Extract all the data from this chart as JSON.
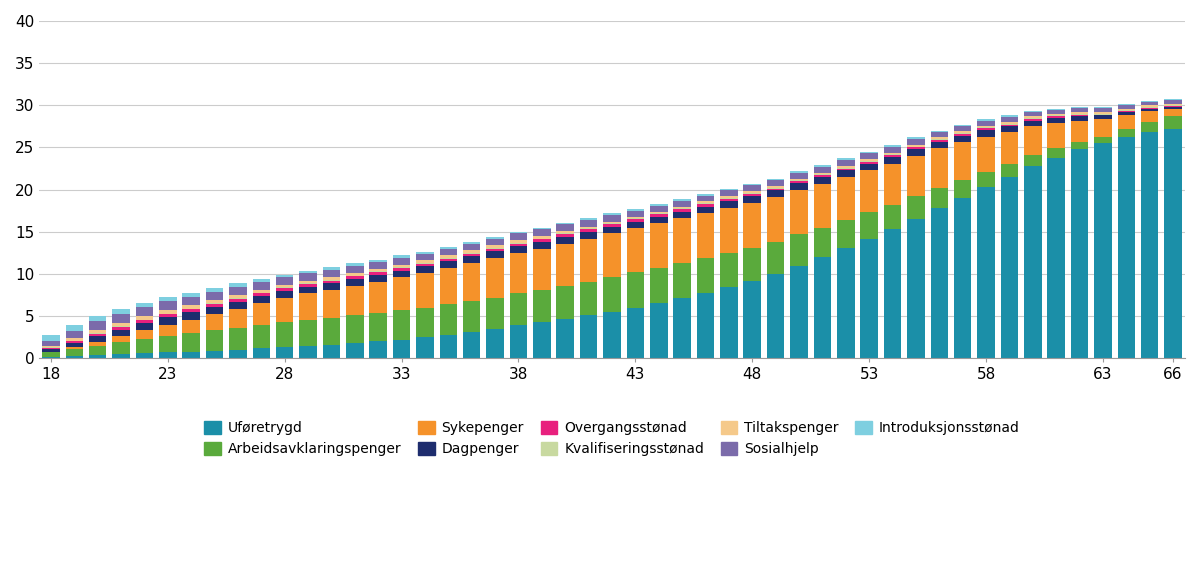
{
  "ages": [
    18,
    19,
    20,
    21,
    22,
    23,
    24,
    25,
    26,
    27,
    28,
    29,
    30,
    31,
    32,
    33,
    34,
    35,
    36,
    37,
    38,
    39,
    40,
    41,
    42,
    43,
    44,
    45,
    46,
    47,
    48,
    49,
    50,
    51,
    52,
    53,
    54,
    55,
    56,
    57,
    58,
    59,
    60,
    61,
    62,
    63,
    64,
    65,
    66
  ],
  "series": {
    "Uføretrygd": [
      0.2,
      0.3,
      0.4,
      0.5,
      0.6,
      0.7,
      0.8,
      0.9,
      1.0,
      1.2,
      1.3,
      1.5,
      1.6,
      1.8,
      2.0,
      2.2,
      2.5,
      2.8,
      3.1,
      3.5,
      3.9,
      4.3,
      4.7,
      5.1,
      5.5,
      6.0,
      6.5,
      7.1,
      7.8,
      8.5,
      9.2,
      10.0,
      11.0,
      12.0,
      13.1,
      14.2,
      15.3,
      16.5,
      17.8,
      19.0,
      20.3,
      21.5,
      22.8,
      23.8,
      24.8,
      25.5,
      26.2,
      26.8,
      27.2
    ],
    "Arbeidsavklaringspenger": [
      0.5,
      0.8,
      1.1,
      1.4,
      1.7,
      2.0,
      2.2,
      2.4,
      2.6,
      2.8,
      3.0,
      3.1,
      3.2,
      3.3,
      3.4,
      3.5,
      3.5,
      3.6,
      3.7,
      3.7,
      3.8,
      3.8,
      3.9,
      4.0,
      4.1,
      4.2,
      4.2,
      4.2,
      4.1,
      4.0,
      3.9,
      3.8,
      3.7,
      3.5,
      3.3,
      3.1,
      2.9,
      2.7,
      2.4,
      2.1,
      1.8,
      1.5,
      1.3,
      1.1,
      0.9,
      0.8,
      1.0,
      1.2,
      1.5
    ],
    "Sykepenger": [
      0.1,
      0.2,
      0.4,
      0.7,
      1.0,
      1.3,
      1.6,
      2.0,
      2.3,
      2.6,
      2.9,
      3.1,
      3.3,
      3.5,
      3.7,
      3.9,
      4.1,
      4.3,
      4.5,
      4.7,
      4.8,
      4.9,
      5.0,
      5.1,
      5.2,
      5.2,
      5.3,
      5.3,
      5.3,
      5.3,
      5.3,
      5.3,
      5.3,
      5.2,
      5.1,
      5.0,
      4.9,
      4.8,
      4.7,
      4.5,
      4.2,
      3.8,
      3.4,
      3.0,
      2.5,
      2.1,
      1.7,
      1.3,
      0.9
    ],
    "Dagpenger": [
      0.3,
      0.5,
      0.7,
      0.8,
      0.9,
      0.9,
      0.9,
      0.8,
      0.8,
      0.8,
      0.8,
      0.8,
      0.8,
      0.8,
      0.8,
      0.8,
      0.8,
      0.8,
      0.8,
      0.8,
      0.8,
      0.8,
      0.8,
      0.8,
      0.8,
      0.8,
      0.8,
      0.8,
      0.8,
      0.8,
      0.8,
      0.8,
      0.8,
      0.8,
      0.8,
      0.8,
      0.8,
      0.8,
      0.8,
      0.8,
      0.8,
      0.7,
      0.7,
      0.6,
      0.5,
      0.4,
      0.3,
      0.3,
      0.2
    ],
    "Overgangsstønad": [
      0.1,
      0.2,
      0.3,
      0.3,
      0.3,
      0.3,
      0.3,
      0.3,
      0.3,
      0.3,
      0.3,
      0.3,
      0.3,
      0.3,
      0.3,
      0.3,
      0.3,
      0.3,
      0.3,
      0.3,
      0.3,
      0.3,
      0.3,
      0.3,
      0.3,
      0.3,
      0.3,
      0.3,
      0.3,
      0.3,
      0.3,
      0.2,
      0.2,
      0.2,
      0.2,
      0.2,
      0.2,
      0.2,
      0.2,
      0.2,
      0.2,
      0.2,
      0.2,
      0.2,
      0.2,
      0.1,
      0.1,
      0.1,
      0.1
    ],
    "Kvalifiseringsstønad": [
      0.1,
      0.1,
      0.1,
      0.1,
      0.1,
      0.1,
      0.1,
      0.1,
      0.1,
      0.1,
      0.1,
      0.1,
      0.1,
      0.1,
      0.1,
      0.1,
      0.1,
      0.1,
      0.1,
      0.1,
      0.1,
      0.1,
      0.1,
      0.1,
      0.1,
      0.1,
      0.1,
      0.1,
      0.1,
      0.1,
      0.1,
      0.1,
      0.1,
      0.1,
      0.1,
      0.1,
      0.1,
      0.1,
      0.1,
      0.1,
      0.1,
      0.1,
      0.1,
      0.1,
      0.1,
      0.1,
      0.1,
      0.1,
      0.1
    ],
    "Tiltakspenger": [
      0.2,
      0.3,
      0.4,
      0.4,
      0.4,
      0.4,
      0.4,
      0.4,
      0.4,
      0.3,
      0.3,
      0.3,
      0.3,
      0.3,
      0.3,
      0.3,
      0.3,
      0.3,
      0.3,
      0.3,
      0.3,
      0.3,
      0.3,
      0.2,
      0.2,
      0.2,
      0.2,
      0.2,
      0.2,
      0.2,
      0.2,
      0.2,
      0.2,
      0.2,
      0.2,
      0.2,
      0.2,
      0.2,
      0.2,
      0.2,
      0.2,
      0.2,
      0.2,
      0.2,
      0.2,
      0.2,
      0.2,
      0.2,
      0.2
    ],
    "Sosialhjelp": [
      0.6,
      0.8,
      1.0,
      1.1,
      1.1,
      1.1,
      1.0,
      1.0,
      1.0,
      1.0,
      0.9,
      0.9,
      0.9,
      0.9,
      0.8,
      0.8,
      0.8,
      0.8,
      0.8,
      0.8,
      0.8,
      0.8,
      0.8,
      0.8,
      0.8,
      0.7,
      0.7,
      0.7,
      0.7,
      0.7,
      0.7,
      0.7,
      0.7,
      0.7,
      0.7,
      0.7,
      0.7,
      0.7,
      0.6,
      0.6,
      0.6,
      0.6,
      0.5,
      0.5,
      0.5,
      0.5,
      0.4,
      0.4,
      0.4
    ],
    "Introduksjonsstønad": [
      0.7,
      0.7,
      0.6,
      0.6,
      0.5,
      0.5,
      0.4,
      0.4,
      0.4,
      0.3,
      0.3,
      0.3,
      0.3,
      0.3,
      0.3,
      0.3,
      0.2,
      0.2,
      0.2,
      0.2,
      0.2,
      0.2,
      0.2,
      0.2,
      0.2,
      0.2,
      0.2,
      0.2,
      0.2,
      0.2,
      0.2,
      0.2,
      0.2,
      0.2,
      0.2,
      0.2,
      0.2,
      0.2,
      0.2,
      0.2,
      0.2,
      0.2,
      0.1,
      0.1,
      0.1,
      0.1,
      0.1,
      0.1,
      0.1
    ]
  },
  "colors": {
    "Uføretrygd": "#1b8fa8",
    "Arbeidsavklaringspenger": "#5aaa3c",
    "Sykepenger": "#f5922a",
    "Dagpenger": "#1e2d6e",
    "Overgangsstønad": "#e8207e",
    "Kvalifiseringsstønad": "#c8d9a0",
    "Tiltakspenger": "#f5c98a",
    "Sosialhjelp": "#7b6baa",
    "Introduksjonsstønad": "#7ecfe0"
  },
  "series_order": [
    "Uføretrygd",
    "Arbeidsavklaringspenger",
    "Sykepenger",
    "Dagpenger",
    "Overgangsstønad",
    "Kvalifiseringsstønad",
    "Tiltakspenger",
    "Sosialhjelp",
    "Introduksjonsstønad"
  ],
  "legend_row1": [
    "Uføretrygd",
    "Arbeidsavklaringspenger",
    "Sykepenger",
    "Dagpenger",
    "Overgangsstønad"
  ],
  "legend_row2": [
    "Kvalifiseringsstønad",
    "Tiltakspenger",
    "Sosialhjelp",
    "Introduksjonsstønad"
  ],
  "ylim": [
    0,
    40
  ],
  "yticks": [
    0,
    5,
    10,
    15,
    20,
    25,
    30,
    35,
    40
  ],
  "xtick_positions": [
    18,
    23,
    28,
    33,
    38,
    43,
    48,
    53,
    58,
    63,
    66
  ],
  "bar_width": 0.75,
  "background_color": "#ffffff",
  "grid_color": "#cccccc"
}
